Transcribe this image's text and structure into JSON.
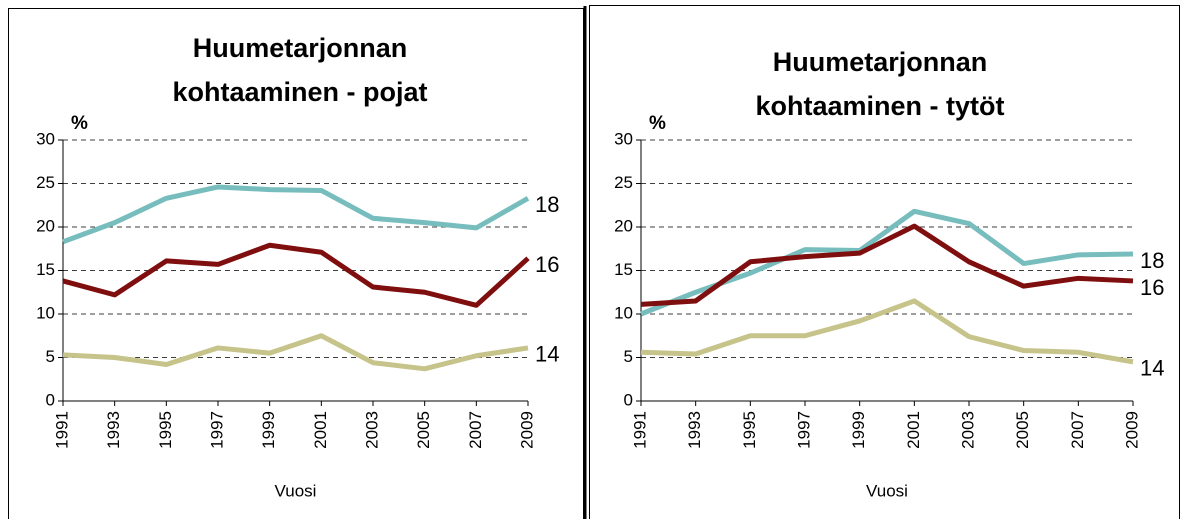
{
  "chart_data": [
    {
      "type": "line",
      "title": "Huumetarjonnan kohtaaminen - pojat",
      "y_label": "%",
      "x_label": "Vuosi",
      "x": [
        1991,
        1993,
        1995,
        1997,
        1999,
        2001,
        2003,
        2005,
        2007,
        2009
      ],
      "xlim": [
        1991,
        2009
      ],
      "ylim": [
        0,
        30
      ],
      "yticks": [
        0,
        5,
        10,
        15,
        20,
        25,
        30
      ],
      "grid": true,
      "series": [
        {
          "name": "18",
          "color": "#77bdbd",
          "values": [
            18.3,
            20.5,
            23.3,
            24.6,
            24.3,
            24.2,
            21,
            20.5,
            19.9,
            23.3
          ]
        },
        {
          "name": "16",
          "color": "#7f0f0f",
          "values": [
            13.8,
            12.2,
            16.1,
            15.7,
            17.9,
            17.1,
            13.1,
            12.5,
            11,
            16.4
          ]
        },
        {
          "name": "14",
          "color": "#c6c48a",
          "values": [
            5.3,
            5,
            4.2,
            6.1,
            5.5,
            7.5,
            4.4,
            3.7,
            5.2,
            6.1
          ]
        }
      ]
    },
    {
      "type": "line",
      "title": "Huumetarjonnan kohtaaminen - tytöt",
      "y_label": "%",
      "x_label": "Vuosi",
      "x": [
        1991,
        1993,
        1995,
        1997,
        1999,
        2001,
        2003,
        2005,
        2007,
        2009
      ],
      "xlim": [
        1991,
        2009
      ],
      "ylim": [
        0,
        30
      ],
      "yticks": [
        0,
        5,
        10,
        15,
        20,
        25,
        30
      ],
      "grid": true,
      "series": [
        {
          "name": "18",
          "color": "#77bdbd",
          "values": [
            10,
            12.5,
            14.7,
            17.4,
            17.3,
            21.8,
            20.4,
            15.8,
            16.8,
            16.9
          ]
        },
        {
          "name": "16",
          "color": "#7f0f0f",
          "values": [
            11.1,
            11.5,
            16,
            16.6,
            17,
            20.1,
            16,
            13.2,
            14.1,
            13.8
          ]
        },
        {
          "name": "14",
          "color": "#c6c48a",
          "values": [
            5.6,
            5.4,
            7.5,
            7.5,
            9.2,
            11.5,
            7.4,
            5.8,
            5.6,
            4.5
          ]
        }
      ]
    }
  ]
}
